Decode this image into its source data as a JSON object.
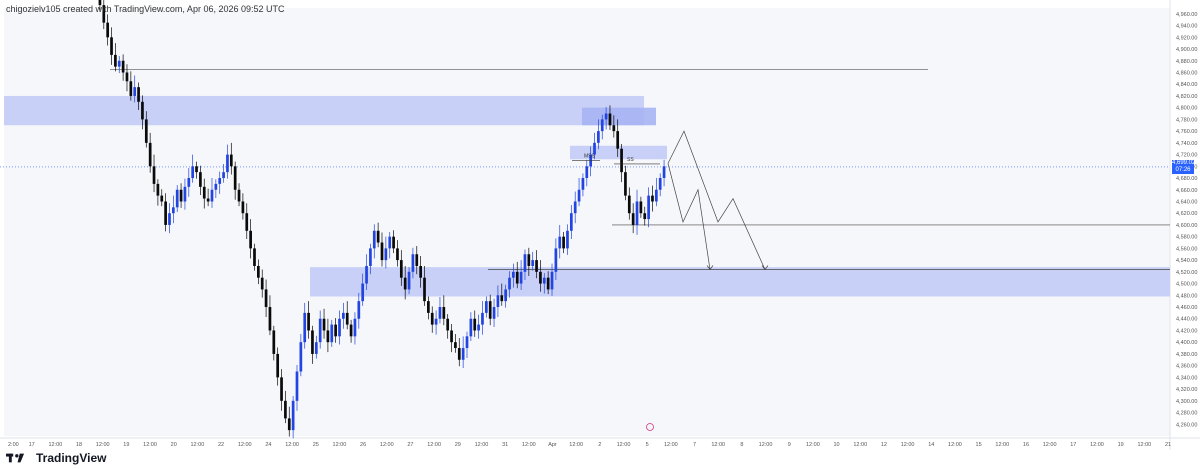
{
  "header": {
    "caption": "chigozielv105 created with TradingView.com, Apr 06, 2026 09:52 UTC"
  },
  "brand": {
    "name": "TradingView",
    "logo_icon": "tradingview-logo-icon"
  },
  "price_badge": {
    "price": "4,699.02",
    "sub": "07:26"
  },
  "colors": {
    "bull": "#2244e0",
    "bear": "#0a0a0a",
    "zone": "#c5cdf8",
    "zone_dark": "#a7b4f4",
    "grid_bg": "#f6f7fb",
    "badge": "#2962ff"
  },
  "chart_data": {
    "type": "candlestick",
    "ylim": [
      4240,
      4970
    ],
    "y_ticks": [
      "4,960.00",
      "4,940.00",
      "4,920.00",
      "4,900.00",
      "4,880.00",
      "4,860.00",
      "4,840.00",
      "4,820.00",
      "4,800.00",
      "4,780.00",
      "4,760.00",
      "4,740.00",
      "4,720.00",
      "4,700.00",
      "4,680.00",
      "4,660.00",
      "4,640.00",
      "4,620.00",
      "4,600.00",
      "4,580.00",
      "4,560.00",
      "4,540.00",
      "4,520.00",
      "4,500.00",
      "4,480.00",
      "4,460.00",
      "4,440.00",
      "4,420.00",
      "4,400.00",
      "4,380.00",
      "4,360.00",
      "4,340.00",
      "4,320.00",
      "4,300.00",
      "4,280.00",
      "4,260.00"
    ],
    "x_ticks": [
      "2:00",
      "17",
      "12:00",
      "18",
      "12:00",
      "19",
      "12:00",
      "20",
      "12:00",
      "22",
      "12:00",
      "24",
      "12:00",
      "25",
      "12:00",
      "26",
      "12:00",
      "27",
      "12:00",
      "29",
      "12:00",
      "31",
      "12:00",
      "Apr",
      "12:00",
      "2",
      "12:00",
      "5",
      "12:00",
      "7",
      "12:00",
      "8",
      "12:00",
      "9",
      "12:00",
      "10",
      "12:00",
      "12",
      "12:00",
      "14",
      "12:00",
      "15",
      "12:00",
      "16",
      "12:00",
      "17",
      "12:00",
      "19",
      "12:00",
      "21"
    ],
    "closes": [
      4975,
      4945,
      4920,
      4890,
      4870,
      4880,
      4860,
      4845,
      4820,
      4835,
      4810,
      4780,
      4740,
      4700,
      4670,
      4650,
      4640,
      4600,
      4620,
      4630,
      4660,
      4640,
      4665,
      4680,
      4700,
      4690,
      4665,
      4645,
      4640,
      4660,
      4670,
      4680,
      4690,
      4720,
      4700,
      4660,
      4640,
      4620,
      4590,
      4560,
      4530,
      4510,
      4490,
      4460,
      4420,
      4380,
      4340,
      4300,
      4270,
      4250,
      4300,
      4350,
      4400,
      4450,
      4420,
      4380,
      4400,
      4440,
      4420,
      4400,
      4430,
      4410,
      4440,
      4450,
      4430,
      4410,
      4440,
      4470,
      4500,
      4530,
      4560,
      4590,
      4570,
      4540,
      4560,
      4580,
      4560,
      4540,
      4510,
      4490,
      4520,
      4550,
      4530,
      4510,
      4470,
      4450,
      4430,
      4440,
      4460,
      4440,
      4420,
      4400,
      4390,
      4370,
      4390,
      4410,
      4440,
      4420,
      4430,
      4450,
      4470,
      4440,
      4460,
      4480,
      4470,
      4490,
      4510,
      4520,
      4500,
      4520,
      4550,
      4530,
      4540,
      4520,
      4500,
      4510,
      4490,
      4520,
      4560,
      4580,
      4560,
      4590,
      4620,
      4640,
      4660,
      4680,
      4700,
      4720,
      4740,
      4760,
      4780,
      4790,
      4770,
      4760,
      4730,
      4690,
      4650,
      4620,
      4600,
      4640,
      4620,
      4610,
      4650,
      4640,
      4660,
      4680,
      4700
    ],
    "supply_zone_top": {
      "y_from": 4770,
      "y_to": 4820
    },
    "demand_zone": {
      "y_from": 4478,
      "y_to": 4528
    },
    "high_line": 4865,
    "target_line": 4600,
    "labels": {
      "mss": "MSS",
      "ss": "SS"
    }
  }
}
